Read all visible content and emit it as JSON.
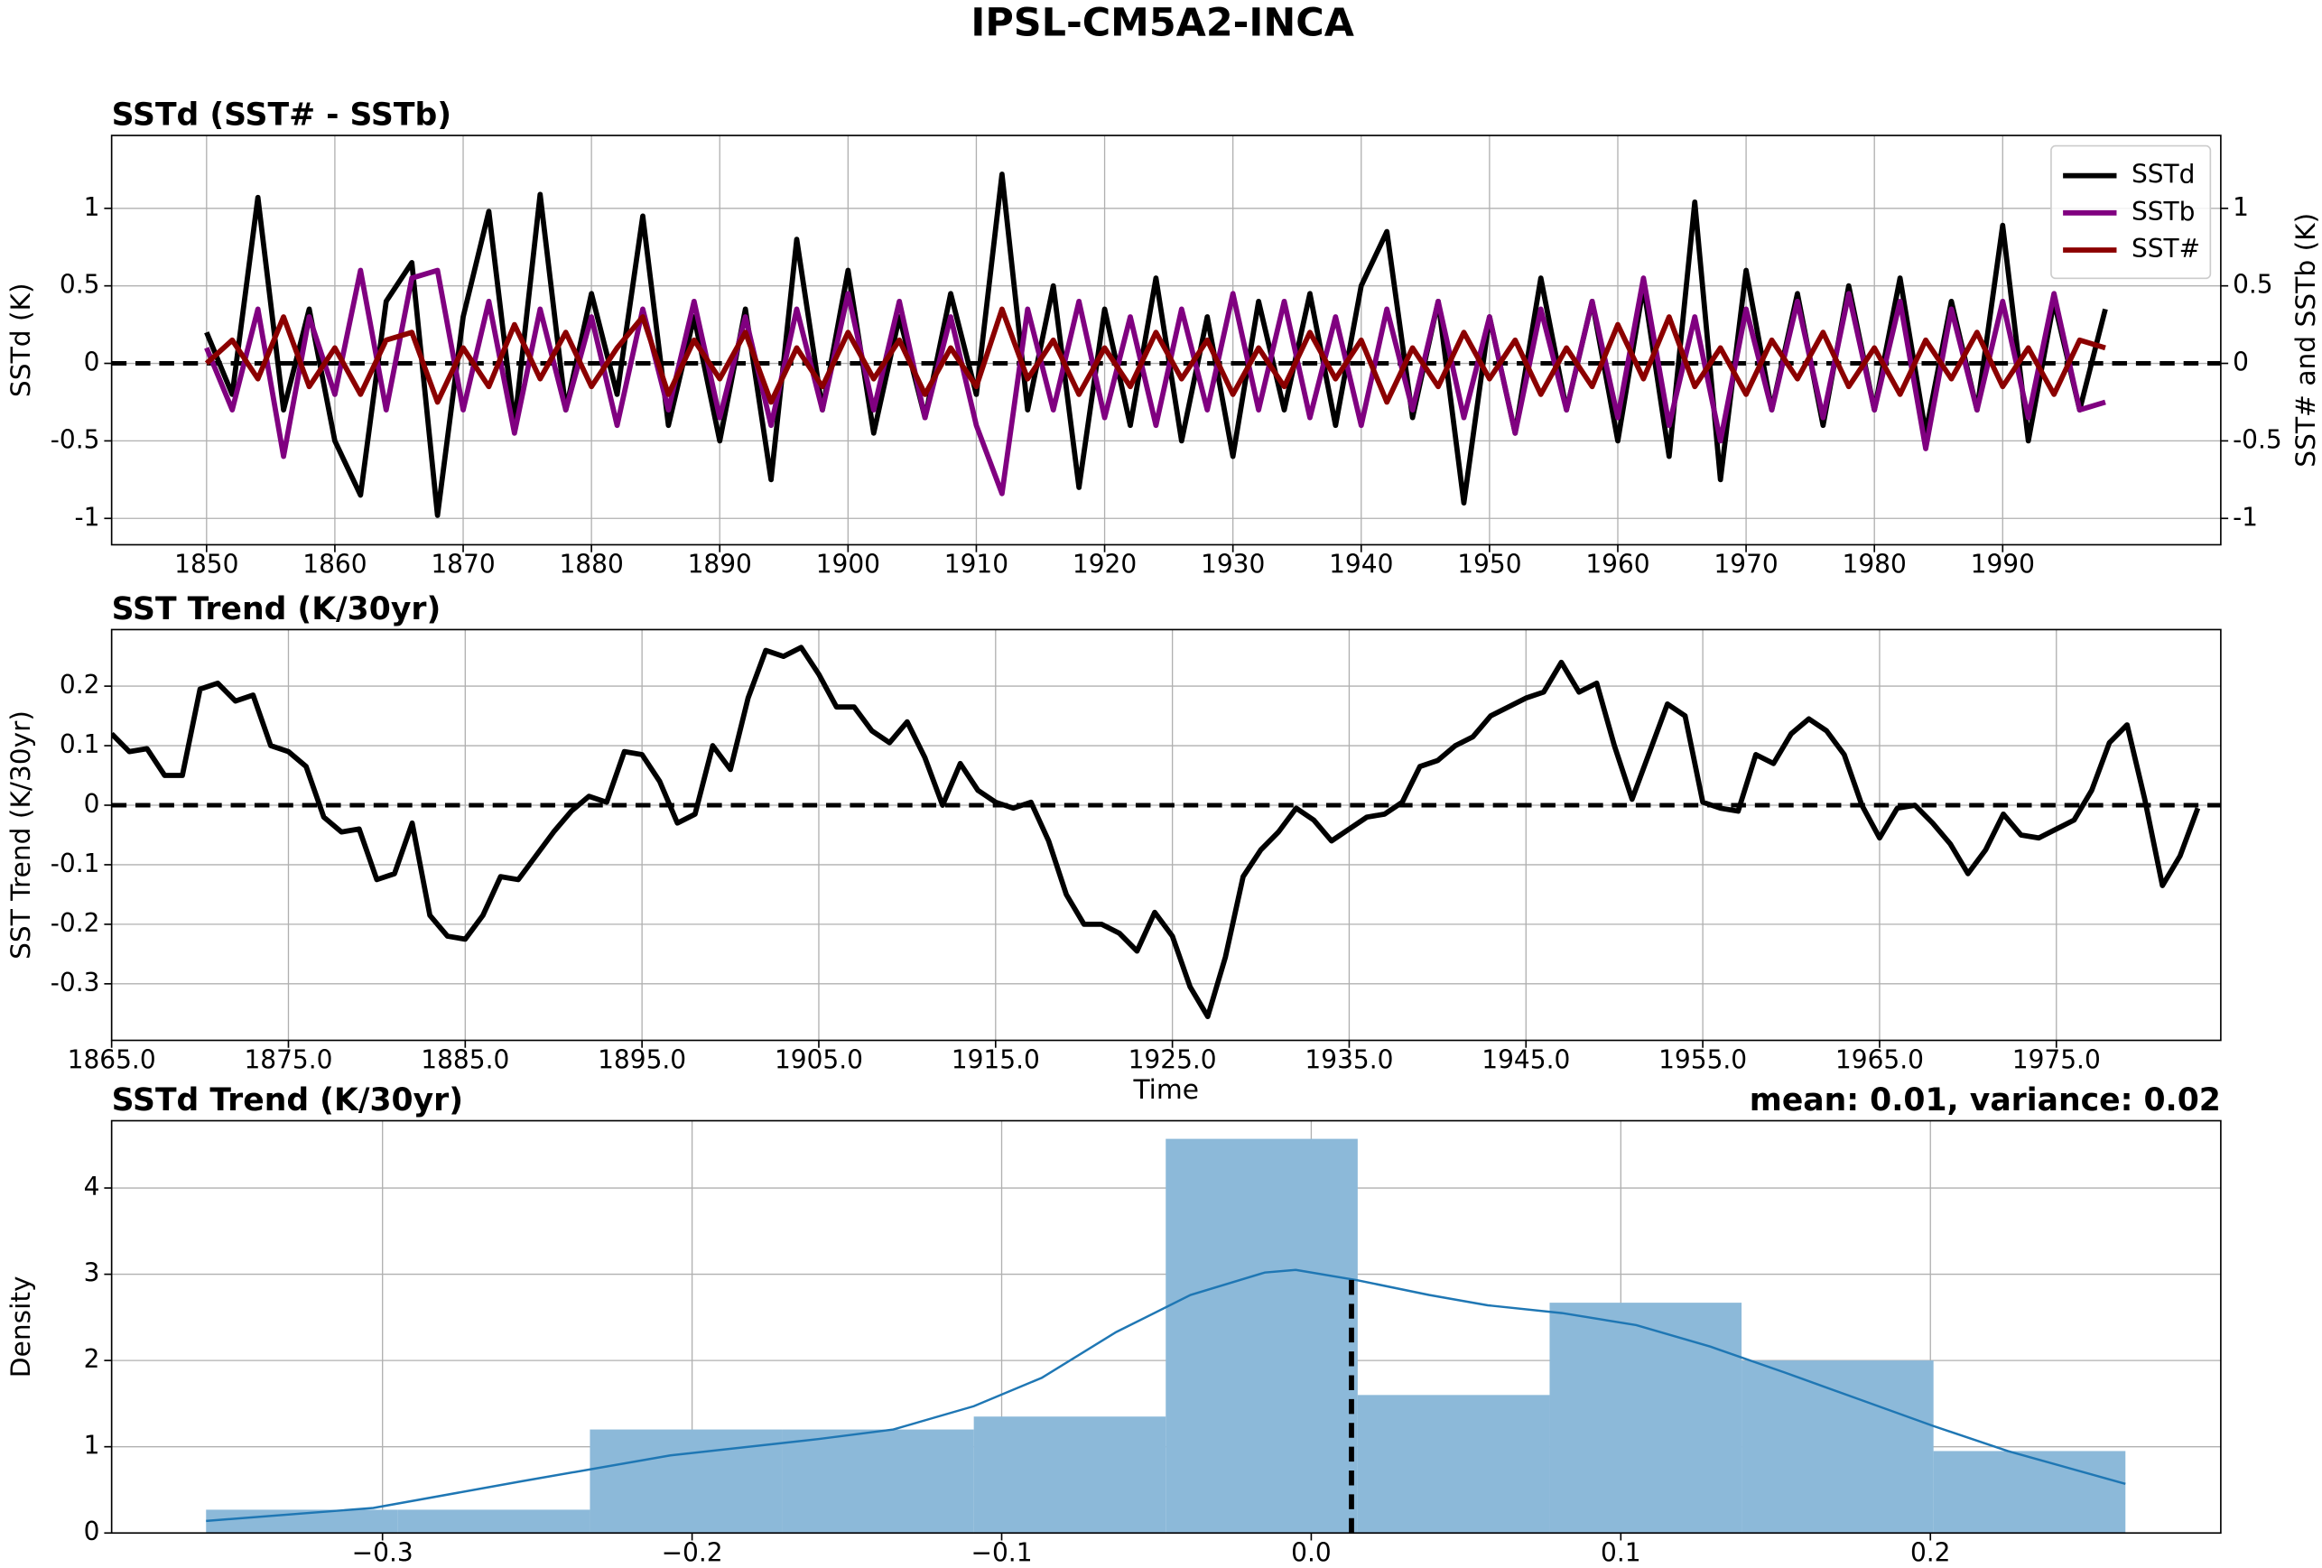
{
  "title": "IPSL-CM5A2-INCA",
  "chart_data": [
    {
      "type": "line",
      "title": "SSTd (SST# - SSTb)",
      "ylabel": "SSTd (K)",
      "y2label": "SST# and SSTb (K)",
      "x": [
        1850,
        1852,
        1854,
        1856,
        1858,
        1860,
        1862,
        1864,
        1866,
        1868,
        1870,
        1872,
        1874,
        1876,
        1878,
        1880,
        1882,
        1884,
        1886,
        1888,
        1890,
        1892,
        1894,
        1896,
        1898,
        1900,
        1902,
        1904,
        1906,
        1908,
        1910,
        1912,
        1914,
        1916,
        1918,
        1920,
        1922,
        1924,
        1926,
        1928,
        1930,
        1932,
        1934,
        1936,
        1938,
        1940,
        1942,
        1944,
        1946,
        1948,
        1950,
        1952,
        1954,
        1956,
        1958,
        1960,
        1962,
        1964,
        1966,
        1968,
        1970,
        1972,
        1974,
        1976,
        1978,
        1980,
        1982,
        1984,
        1986,
        1988,
        1990,
        1992,
        1994,
        1996,
        1998
      ],
      "series": [
        {
          "name": "SSTd",
          "color": "#000000",
          "values": [
            0.2,
            -0.2,
            1.07,
            -0.3,
            0.35,
            -0.5,
            -0.85,
            0.4,
            0.65,
            -0.98,
            0.3,
            0.98,
            -0.4,
            1.09,
            -0.3,
            0.45,
            -0.2,
            0.95,
            -0.4,
            0.3,
            -0.5,
            0.35,
            -0.75,
            0.8,
            -0.3,
            0.6,
            -0.45,
            0.3,
            -0.35,
            0.45,
            -0.2,
            1.22,
            -0.3,
            0.5,
            -0.8,
            0.35,
            -0.4,
            0.55,
            -0.5,
            0.3,
            -0.6,
            0.4,
            -0.3,
            0.45,
            -0.4,
            0.5,
            0.85,
            -0.35,
            0.4,
            -0.9,
            0.3,
            -0.45,
            0.55,
            -0.3,
            0.4,
            -0.5,
            0.5,
            -0.6,
            1.04,
            -0.75,
            0.6,
            -0.3,
            0.45,
            -0.4,
            0.5,
            -0.3,
            0.55,
            -0.45,
            0.4,
            -0.3,
            0.89,
            -0.5,
            0.4,
            -0.3,
            0.35
          ]
        },
        {
          "name": "SSTb",
          "color": "#800080",
          "axis": "y2",
          "values": [
            0.1,
            -0.3,
            0.35,
            -0.6,
            0.3,
            -0.2,
            0.6,
            -0.3,
            0.55,
            0.6,
            -0.3,
            0.4,
            -0.45,
            0.35,
            -0.3,
            0.3,
            -0.4,
            0.35,
            -0.3,
            0.4,
            -0.35,
            0.3,
            -0.4,
            0.35,
            -0.3,
            0.45,
            -0.3,
            0.4,
            -0.35,
            0.3,
            -0.4,
            -0.84,
            0.35,
            -0.3,
            0.4,
            -0.35,
            0.3,
            -0.4,
            0.35,
            -0.3,
            0.45,
            -0.3,
            0.4,
            -0.35,
            0.3,
            -0.4,
            0.35,
            -0.3,
            0.4,
            -0.35,
            0.3,
            -0.45,
            0.35,
            -0.3,
            0.4,
            -0.35,
            0.55,
            -0.4,
            0.3,
            -0.5,
            0.35,
            -0.3,
            0.4,
            -0.35,
            0.45,
            -0.3,
            0.4,
            -0.55,
            0.35,
            -0.3,
            0.4,
            -0.35,
            0.45,
            -0.3,
            -0.25
          ]
        },
        {
          "name": "SST#",
          "color": "#8b0000",
          "axis": "y2",
          "values": [
            0.0,
            0.15,
            -0.1,
            0.3,
            -0.15,
            0.1,
            -0.2,
            0.15,
            0.2,
            -0.25,
            0.1,
            -0.15,
            0.25,
            -0.1,
            0.2,
            -0.15,
            0.1,
            0.3,
            -0.2,
            0.15,
            -0.1,
            0.2,
            -0.25,
            0.1,
            -0.15,
            0.2,
            -0.1,
            0.15,
            -0.2,
            0.1,
            -0.15,
            0.35,
            -0.1,
            0.15,
            -0.2,
            0.1,
            -0.15,
            0.2,
            -0.1,
            0.15,
            -0.2,
            0.1,
            -0.15,
            0.2,
            -0.1,
            0.15,
            -0.25,
            0.1,
            -0.15,
            0.2,
            -0.1,
            0.15,
            -0.2,
            0.1,
            -0.15,
            0.25,
            -0.1,
            0.3,
            -0.15,
            0.1,
            -0.2,
            0.15,
            -0.1,
            0.2,
            -0.15,
            0.1,
            -0.2,
            0.15,
            -0.1,
            0.2,
            -0.15,
            0.1,
            -0.2,
            0.15,
            0.1
          ]
        }
      ],
      "zero_line": 0,
      "xlim": [
        1842.6,
        2007
      ],
      "xticks": [
        1850,
        1860,
        1870,
        1880,
        1890,
        1900,
        1910,
        1920,
        1930,
        1940,
        1950,
        1960,
        1970,
        1980,
        1990
      ],
      "ylim": [
        -1.17,
        1.47
      ],
      "yticks": [
        -1.0,
        -0.5,
        0.0,
        0.5,
        1.0
      ],
      "y2lim": [
        -1.17,
        1.47
      ],
      "y2ticks": [
        -1.0,
        -0.5,
        0.0,
        0.5,
        1.0
      ],
      "grid": true,
      "legend": "upper right"
    },
    {
      "type": "line",
      "title": "SST Trend (K/30yr)",
      "ylabel": "SST Trend (K/30yr)",
      "xlabel": "Time",
      "x": [
        1865,
        1866,
        1867,
        1868,
        1869,
        1870,
        1871,
        1872,
        1873,
        1874,
        1875,
        1876,
        1877,
        1878,
        1879,
        1880,
        1881,
        1882,
        1883,
        1884,
        1885,
        1886,
        1887,
        1888,
        1889,
        1890,
        1891,
        1892,
        1893,
        1894,
        1895,
        1896,
        1897,
        1898,
        1899,
        1900,
        1901,
        1902,
        1903,
        1904,
        1905,
        1906,
        1907,
        1908,
        1909,
        1910,
        1911,
        1912,
        1913,
        1914,
        1915,
        1916,
        1917,
        1918,
        1919,
        1920,
        1921,
        1922,
        1923,
        1924,
        1925,
        1926,
        1927,
        1928,
        1929,
        1930,
        1931,
        1932,
        1933,
        1934,
        1935,
        1936,
        1937,
        1938,
        1939,
        1940,
        1941,
        1942,
        1943,
        1944,
        1945,
        1946,
        1947,
        1948,
        1949,
        1950,
        1951,
        1952,
        1953,
        1954,
        1955,
        1956,
        1957,
        1958,
        1959,
        1960,
        1961,
        1962,
        1963,
        1964,
        1965,
        1966,
        1967,
        1968,
        1969,
        1970,
        1971,
        1972,
        1973,
        1974,
        1975,
        1976,
        1977,
        1978,
        1979,
        1980,
        1981,
        1982,
        1983
      ],
      "series": [
        {
          "name": "SST Trend",
          "color": "#000000",
          "values": [
            0.12,
            0.09,
            0.095,
            0.05,
            0.05,
            0.195,
            0.205,
            0.175,
            0.185,
            0.1,
            0.09,
            0.065,
            -0.02,
            -0.045,
            -0.04,
            -0.125,
            -0.115,
            -0.03,
            -0.185,
            -0.22,
            -0.225,
            -0.185,
            -0.12,
            -0.125,
            -0.085,
            -0.045,
            -0.01,
            0.015,
            0.005,
            0.09,
            0.085,
            0.04,
            -0.03,
            -0.015,
            0.1,
            0.06,
            0.18,
            0.26,
            0.25,
            0.265,
            0.22,
            0.165,
            0.165,
            0.125,
            0.105,
            0.14,
            0.08,
            0.0,
            0.07,
            0.025,
            0.005,
            -0.005,
            0.005,
            -0.06,
            -0.15,
            -0.2,
            -0.2,
            -0.215,
            -0.245,
            -0.18,
            -0.22,
            -0.305,
            -0.355,
            -0.255,
            -0.12,
            -0.075,
            -0.045,
            -0.005,
            -0.025,
            -0.06,
            -0.04,
            -0.02,
            -0.015,
            0.005,
            0.065,
            0.075,
            0.1,
            0.115,
            0.15,
            0.165,
            0.18,
            0.19,
            0.24,
            0.19,
            0.205,
            0.1,
            0.01,
            0.09,
            0.17,
            0.15,
            0.005,
            -0.005,
            -0.01,
            0.085,
            0.07,
            0.12,
            0.145,
            0.125,
            0.085,
            0.0,
            -0.055,
            -0.005,
            0.0,
            -0.03,
            -0.065,
            -0.115,
            -0.075,
            -0.015,
            -0.05,
            -0.055,
            -0.04,
            -0.025,
            0.025,
            0.105,
            0.135,
            0.01,
            -0.135,
            -0.085,
            -0.005
          ]
        }
      ],
      "zero_line": 0,
      "xlim": [
        1865,
        1984.3
      ],
      "xticks": [
        {
          "value": 1865,
          "label": "1865.0"
        },
        {
          "value": 1875,
          "label": "1875.0"
        },
        {
          "value": 1885,
          "label": "1885.0"
        },
        {
          "value": 1895,
          "label": "1895.0"
        },
        {
          "value": 1905,
          "label": "1905.0"
        },
        {
          "value": 1915,
          "label": "1915.0"
        },
        {
          "value": 1925,
          "label": "1925.0"
        },
        {
          "value": 1935,
          "label": "1935.0"
        },
        {
          "value": 1945,
          "label": "1945.0"
        },
        {
          "value": 1955,
          "label": "1955.0"
        },
        {
          "value": 1965,
          "label": "1965.0"
        },
        {
          "value": 1975,
          "label": "1975.0"
        }
      ],
      "ylim": [
        -0.395,
        0.295
      ],
      "yticks": [
        -0.3,
        -0.2,
        -0.1,
        0.0,
        0.1,
        0.2
      ],
      "grid": true
    },
    {
      "type": "histogram",
      "title": "SSTd Trend (K/30yr)",
      "annotation": "mean: 0.01, variance: 0.02",
      "ylabel": "Density",
      "bins": [
        -0.357,
        -0.295,
        -0.233,
        -0.171,
        -0.109,
        -0.047,
        0.015,
        0.077,
        0.139,
        0.201,
        0.263
      ],
      "values": [
        0.27,
        0.27,
        1.2,
        1.2,
        1.35,
        4.57,
        1.6,
        2.67,
        2.0,
        0.95
      ],
      "color": "#8cb9d9",
      "kde": {
        "color": "#1f77b4",
        "x": [
          -0.357,
          -0.303,
          -0.255,
          -0.207,
          -0.159,
          -0.135,
          -0.109,
          -0.087,
          -0.063,
          -0.039,
          -0.015,
          -0.005,
          0.015,
          0.038,
          0.057,
          0.081,
          0.105,
          0.129,
          0.153,
          0.177,
          0.201,
          0.225,
          0.263
        ],
        "values": [
          0.14,
          0.29,
          0.6,
          0.9,
          1.09,
          1.2,
          1.47,
          1.8,
          2.33,
          2.76,
          3.02,
          3.05,
          2.93,
          2.76,
          2.64,
          2.55,
          2.41,
          2.16,
          1.86,
          1.55,
          1.24,
          0.95,
          0.57
        ]
      },
      "mean_line": {
        "x": 0.013,
        "ymax": 2.95
      },
      "xlim": [
        -0.3875,
        0.2938
      ],
      "xticks": [
        {
          "value": -0.3,
          "label": "−0.3"
        },
        {
          "value": -0.2,
          "label": "−0.2"
        },
        {
          "value": -0.1,
          "label": "−0.1"
        },
        {
          "value": 0.0,
          "label": "0.0"
        },
        {
          "value": 0.1,
          "label": "0.1"
        },
        {
          "value": 0.2,
          "label": "0.2"
        }
      ],
      "ylim": [
        0,
        4.78
      ],
      "yticks": [
        0,
        1,
        2,
        3,
        4
      ],
      "grid": true
    }
  ]
}
